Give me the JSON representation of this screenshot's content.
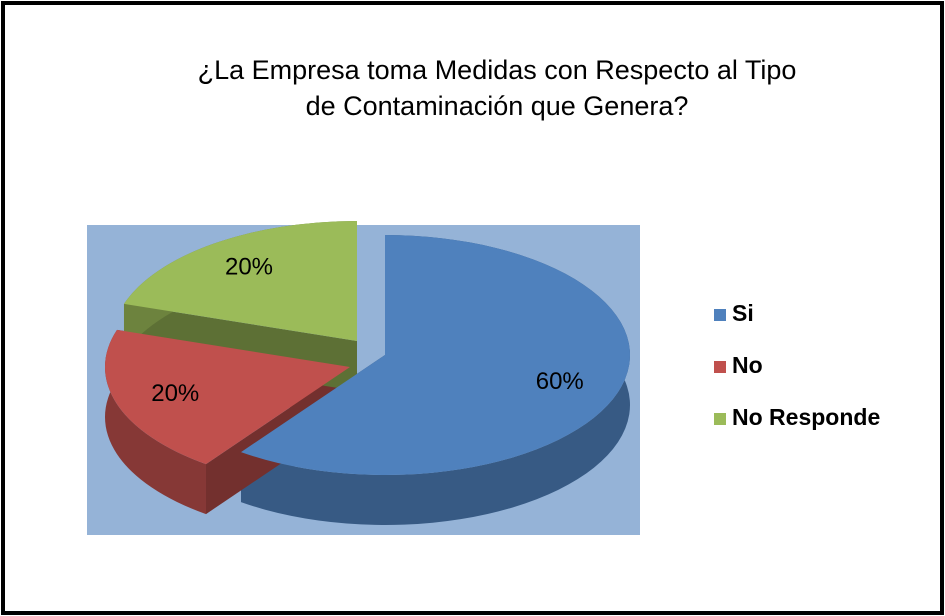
{
  "chart_data": {
    "type": "pie",
    "title": "¿La Empresa toma Medidas con Respecto al Tipo de Contaminación que Genera?",
    "categories": [
      "Si",
      "No",
      "No Responde"
    ],
    "values": [
      60,
      20,
      20
    ],
    "value_labels": [
      "60%",
      "20%",
      "20%"
    ],
    "colors": [
      "#4f81bd",
      "#c0504d",
      "#9bbb59"
    ],
    "legend": "right"
  }
}
